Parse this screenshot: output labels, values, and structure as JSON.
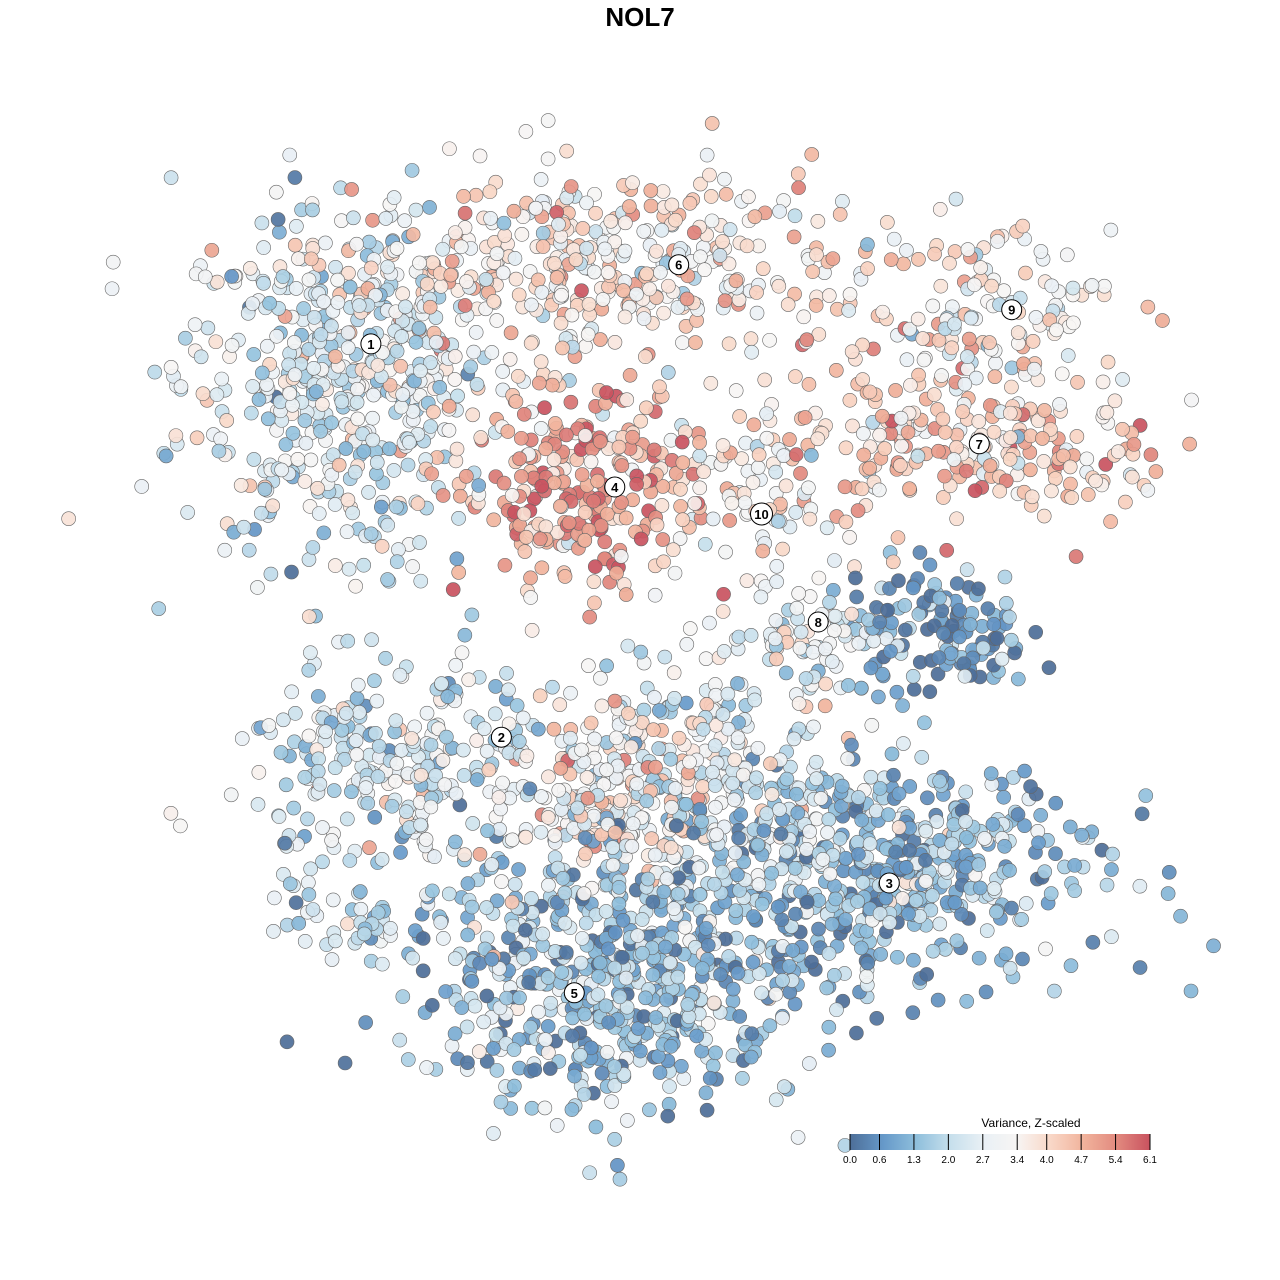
{
  "chart_data": {
    "type": "scatter",
    "title": "NOL7",
    "xlabel": "",
    "ylabel": "",
    "grid": false,
    "xlim": [
      -50,
      55
    ],
    "ylim": [
      -52,
      52
    ],
    "note": "t-SNE embedding; points summarised per cluster (center, spread, count, mean Z-scaled variance)",
    "clusters": [
      {
        "id": "1",
        "cx": -33.3,
        "cy": 28.9,
        "sx": 8.9,
        "sy": 10,
        "n": 500,
        "value": 2.5
      },
      {
        "id": "6",
        "cx": -4.4,
        "cy": 41.1,
        "sx": 14.4,
        "sy": 5.6,
        "n": 420,
        "value": 3.6
      },
      {
        "id": "9",
        "cx": 38.9,
        "cy": 36.7,
        "sx": 6.7,
        "sy": 4.4,
        "n": 120,
        "value": 3.2
      },
      {
        "id": "7",
        "cx": 35.6,
        "cy": 22.2,
        "sx": 12.2,
        "sy": 5,
        "n": 260,
        "value": 4.2
      },
      {
        "id": "4",
        "cx": -6.7,
        "cy": 16.7,
        "sx": 6.7,
        "sy": 5.6,
        "n": 260,
        "value": 4.8
      },
      {
        "id": "10",
        "cx": 13.3,
        "cy": 15.6,
        "sx": 4.4,
        "sy": 4.4,
        "n": 60,
        "value": 3.4
      },
      {
        "id": "8",
        "cx": 20,
        "cy": 1.1,
        "sx": 4,
        "sy": 3,
        "n": 60,
        "value": 2.8
      },
      {
        "id": "8",
        "cx": 33.3,
        "cy": 1.1,
        "sx": 5,
        "sy": 3.5,
        "n": 130,
        "value": 0.6
      },
      {
        "id": "2",
        "cx": -26.7,
        "cy": -14.4,
        "sx": 8.9,
        "sy": 5.5,
        "n": 250,
        "value": 2.3
      },
      {
        "id": "2-5",
        "cx": 4.4,
        "cy": -15.6,
        "sx": 11,
        "sy": 8,
        "n": 400,
        "value": 2.6
      },
      {
        "id": "2-5",
        "cx": -2.2,
        "cy": -16.7,
        "sx": 5,
        "sy": 4,
        "n": 100,
        "value": 4.0
      },
      {
        "id": "3",
        "cx": 26.7,
        "cy": -25.6,
        "sx": 12.2,
        "sy": 6.2,
        "n": 500,
        "value": 1.3
      },
      {
        "id": "5",
        "cx": -3.3,
        "cy": -37.8,
        "sx": 11.5,
        "sy": 7.2,
        "n": 600,
        "value": 1.4
      },
      {
        "id": "5",
        "cx": -33.3,
        "cy": -31.1,
        "sx": 5,
        "sy": 2.5,
        "n": 40,
        "value": 1.9
      }
    ],
    "cluster_labels": [
      {
        "text": "1",
        "x": -29.9,
        "y": 32.9
      },
      {
        "text": "6",
        "x": 4.3,
        "y": 41.7
      },
      {
        "text": "9",
        "x": 41.3,
        "y": 36.7
      },
      {
        "text": "7",
        "x": 37.7,
        "y": 21.8
      },
      {
        "text": "4",
        "x": -2.8,
        "y": 17
      },
      {
        "text": "10",
        "x": 13.5,
        "y": 14
      },
      {
        "text": "8",
        "x": 19.8,
        "y": 2
      },
      {
        "text": "2",
        "x": -15.4,
        "y": -10.8
      },
      {
        "text": "3",
        "x": 27.7,
        "y": -27
      },
      {
        "text": "5",
        "x": -7.3,
        "y": -39.2
      }
    ],
    "legend": {
      "title": "Variance, Z-scaled",
      "placement": "bottom-right",
      "ticks": [
        "0.0",
        "0.6",
        "1.3",
        "2.0",
        "2.7",
        "3.4",
        "4.0",
        "4.7",
        "5.4",
        "6.1"
      ],
      "range": [
        0,
        6.1
      ],
      "colors": [
        "#4d6e98",
        "#6699c9",
        "#8fbfdc",
        "#c6dfec",
        "#e9f0f5",
        "#f7f5f4",
        "#f9d8c8",
        "#f1b39c",
        "#e28a7f",
        "#c9525f"
      ]
    }
  }
}
